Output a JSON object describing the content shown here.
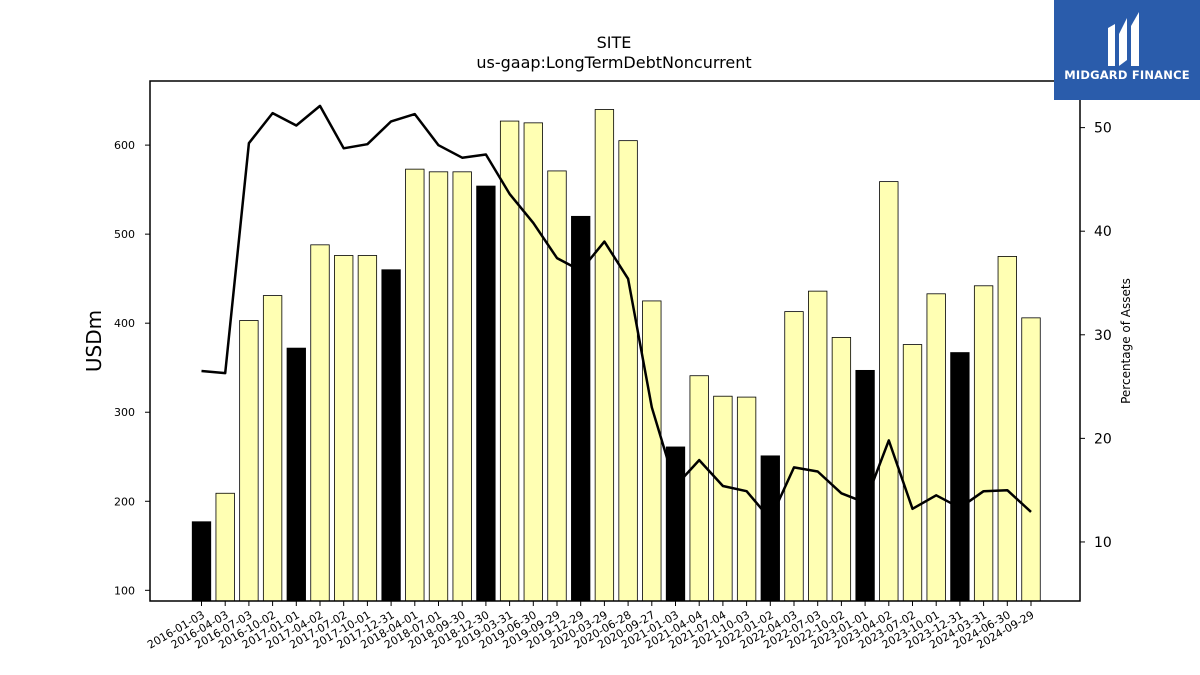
{
  "logo": {
    "text": "MIDGARD FINANCE"
  },
  "chart_data": {
    "type": "bar",
    "title": "SITE",
    "subtitle": "us-gaap:LongTermDebtNoncurrent",
    "ylabel": "USDm",
    "y2label": "Percentage of Assets",
    "ylim": [
      88,
      672
    ],
    "y2lim": [
      4.3,
      54.5
    ],
    "yticks": [
      100,
      200,
      300,
      400,
      500,
      600
    ],
    "y2ticks": [
      10,
      20,
      30,
      40,
      50
    ],
    "categories": [
      "2016-01-03",
      "2016-04-03",
      "2016-07-03",
      "2016-10-02",
      "2017-01-01",
      "2017-04-02",
      "2017-07-02",
      "2017-10-01",
      "2017-12-31",
      "2018-04-01",
      "2018-07-01",
      "2018-09-30",
      "2018-12-30",
      "2019-03-31",
      "2019-06-30",
      "2019-09-29",
      "2019-12-29",
      "2020-03-29",
      "2020-06-28",
      "2020-09-27",
      "2021-01-03",
      "2021-04-04",
      "2021-07-04",
      "2021-10-03",
      "2022-01-02",
      "2022-04-03",
      "2022-07-03",
      "2022-10-02",
      "2023-01-01",
      "2023-04-02",
      "2023-07-02",
      "2023-10-01",
      "2023-12-31",
      "2024-03-31",
      "2024-06-30",
      "2024-09-29"
    ],
    "series": [
      {
        "type": "bar",
        "values": [
          177,
          209,
          403,
          431,
          372,
          488,
          476,
          476,
          460,
          573,
          570,
          570,
          554,
          627,
          625,
          571,
          520,
          640,
          605,
          425,
          261,
          341,
          318,
          317,
          251,
          413,
          436,
          384,
          347,
          559,
          376,
          433,
          367,
          442,
          475,
          406
        ],
        "highlight": [
          true,
          false,
          false,
          false,
          true,
          false,
          false,
          false,
          true,
          false,
          false,
          false,
          true,
          false,
          false,
          false,
          true,
          false,
          false,
          false,
          true,
          false,
          false,
          false,
          true,
          false,
          false,
          false,
          true,
          false,
          false,
          false,
          true,
          false,
          false,
          false
        ],
        "color": "#ffffb3",
        "highlight_color": "#000000"
      },
      {
        "type": "line",
        "axis": "right",
        "values": [
          26.5,
          26.3,
          48.5,
          51.4,
          50.2,
          52.1,
          48.0,
          48.4,
          50.6,
          51.3,
          48.3,
          47.1,
          47.4,
          43.6,
          40.8,
          37.4,
          36.2,
          39.0,
          35.4,
          23.0,
          15.4,
          17.9,
          15.4,
          14.9,
          12.2,
          17.2,
          16.8,
          14.7,
          13.8,
          19.8,
          13.2,
          14.5,
          13.3,
          14.9,
          15.0,
          12.9
        ],
        "color": "#000000"
      }
    ],
    "grid": false
  }
}
